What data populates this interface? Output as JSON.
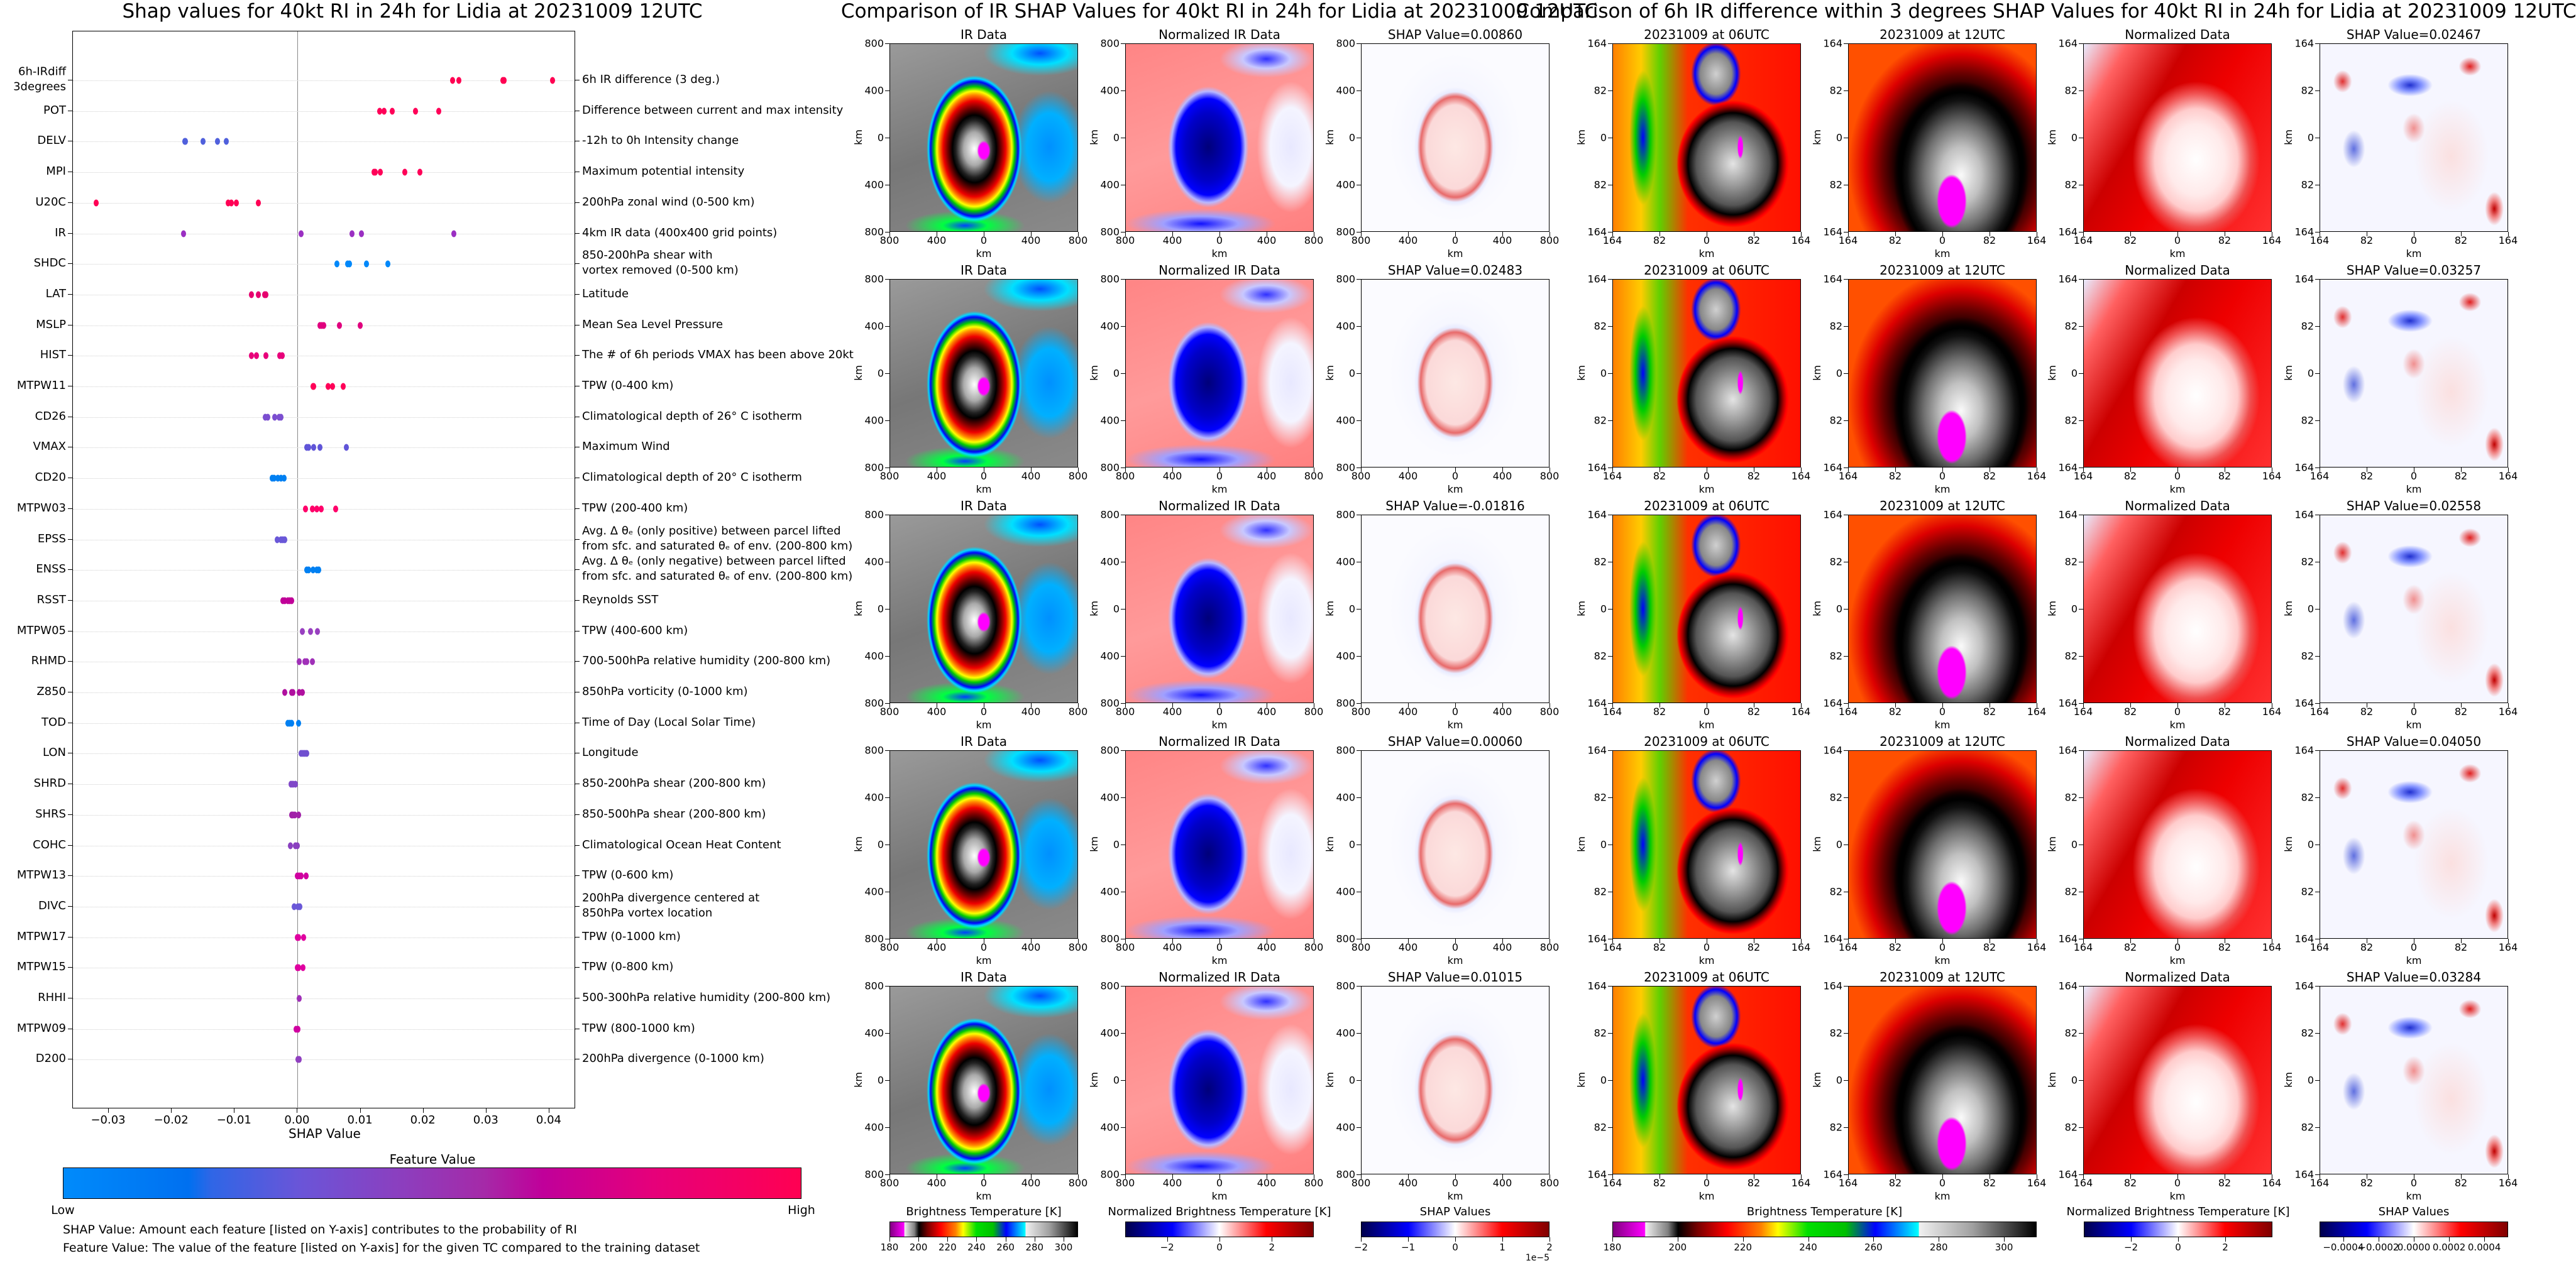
{
  "chart_data": {
    "type": "scatter",
    "title": "Shap values for 40kt RI in 24h for Lidia at 20231009 12UTC",
    "xlabel": "SHAP Value",
    "xlim": [
      -0.0357,
      0.0442
    ],
    "xticks": [
      {
        "v": -0.03,
        "label": "−0.03"
      },
      {
        "v": -0.02,
        "label": "−0.02"
      },
      {
        "v": -0.01,
        "label": "−0.01"
      },
      {
        "v": 0.0,
        "label": "0.00"
      },
      {
        "v": 0.01,
        "label": "0.01"
      },
      {
        "v": 0.02,
        "label": "0.02"
      },
      {
        "v": 0.03,
        "label": "0.03"
      },
      {
        "v": 0.04,
        "label": "0.04"
      }
    ],
    "features": [
      {
        "code": "6h-IRdiff\n3degrees",
        "desc": "6h IR difference (3 deg.)",
        "color": "#ff0052",
        "values": [
          0.02467,
          0.02558,
          0.03257,
          0.03284,
          0.0405
        ]
      },
      {
        "code": "POT",
        "desc": "Difference between current and max intensity",
        "color": "#ff0058",
        "values": [
          0.013,
          0.0137,
          0.015,
          0.0187,
          0.0224
        ]
      },
      {
        "code": "DELV",
        "desc": "-12h to 0h Intensity change",
        "color": "#5060dc",
        "values": [
          -0.0179,
          -0.0178,
          -0.015,
          -0.0127,
          -0.0113
        ]
      },
      {
        "code": "MPI",
        "desc": "Maximum potential intensity",
        "color": "#ff0058",
        "values": [
          0.0121,
          0.0123,
          0.0131,
          0.017,
          0.0194
        ]
      },
      {
        "code": "U20C",
        "desc": "200hPa zonal wind (0-500 km)",
        "color": "#ff0055",
        "values": [
          -0.032,
          -0.011,
          -0.0105,
          -0.0097,
          -0.0062
        ]
      },
      {
        "code": "IR",
        "desc": "4km IR data (400x400 grid points)",
        "color": "#9a2fc2",
        "values": [
          -0.01816,
          0.0006,
          0.0086,
          0.01015,
          0.02483
        ]
      },
      {
        "code": "SHDC",
        "desc": "850-200hPa shear with\nvortex removed (0-500 km)",
        "color": "#0088fa",
        "values": [
          0.0062,
          0.0079,
          0.0082,
          0.0109,
          0.0143
        ]
      },
      {
        "code": "LAT",
        "desc": "Latitude",
        "color": "#e6006e",
        "values": [
          -0.0073,
          -0.0062,
          -0.0052,
          -0.005
        ]
      },
      {
        "code": "MSLP",
        "desc": "Mean Sea Level Pressure",
        "color": "#e0007e",
        "values": [
          0.0036,
          0.0039,
          0.0042,
          0.0066,
          0.0099
        ]
      },
      {
        "code": "HIST",
        "desc": "The # of 6h periods VMAX has been above 20kt",
        "color": "#e8007a",
        "values": [
          -0.0073,
          -0.0065,
          -0.005,
          -0.0028,
          -0.0024
        ]
      },
      {
        "code": "MTPW11",
        "desc": "TPW (0-400 km)",
        "color": "#ff0058",
        "values": [
          0.0025,
          0.0026,
          0.0048,
          0.0055,
          0.0072
        ]
      },
      {
        "code": "CD26",
        "desc": "Climatological depth of 26° C isotherm",
        "color": "#7b4ed0",
        "values": [
          -0.0051,
          -0.0047,
          -0.0036,
          -0.0029,
          -0.0026
        ]
      },
      {
        "code": "VMAX",
        "desc": "Maximum Wind",
        "color": "#6055d8",
        "values": [
          0.0015,
          0.0018,
          0.0026,
          0.0036,
          0.0077
        ]
      },
      {
        "code": "CD20",
        "desc": "Climatological depth of 20° C isotherm",
        "color": "#0080f2",
        "values": [
          -0.004,
          -0.0037,
          -0.0031,
          -0.0026,
          -0.0021
        ]
      },
      {
        "code": "MTPW03",
        "desc": "TPW (200-400 km)",
        "color": "#ff006a",
        "values": [
          0.0013,
          0.0024,
          0.0031,
          0.0038,
          0.006
        ]
      },
      {
        "code": "EPSS",
        "desc": "Avg. Δ θₑ (only positive) between parcel lifted\nfrom sfc. and saturated θₑ of env. (200-800 km)",
        "color": "#6a58d8",
        "values": [
          -0.0032,
          -0.0026,
          -0.0023,
          -0.002
        ]
      },
      {
        "code": "ENSS",
        "desc": "Avg. Δ θₑ (only negative) between parcel lifted\nfrom sfc. and saturated θₑ of env. (200-800 km)",
        "color": "#0080f2",
        "values": [
          0.0015,
          0.0018,
          0.0025,
          0.0031,
          0.0034
        ]
      },
      {
        "code": "RSST",
        "desc": "Reynolds SST",
        "color": "#c00098",
        "values": [
          -0.0023,
          -0.002,
          -0.0015,
          -0.0012,
          -0.0009
        ]
      },
      {
        "code": "MTPW05",
        "desc": "TPW (400-600 km)",
        "color": "#9840c0",
        "values": [
          0.0008,
          0.0021,
          0.0032
        ]
      },
      {
        "code": "RHMD",
        "desc": "700-500hPa relative humidity (200-800 km)",
        "color": "#a030b8",
        "values": [
          0.0003,
          0.0012,
          0.0015,
          0.0024
        ]
      },
      {
        "code": "Z850",
        "desc": "850hPa vorticity (0-1000 km)",
        "color": "#b0109f",
        "values": [
          -0.002,
          -0.0009,
          -0.0007,
          0.0003,
          0.0008
        ]
      },
      {
        "code": "TOD",
        "desc": "Time of Day (Local Solar Time)",
        "color": "#0080f2",
        "values": [
          -0.0015,
          -0.0012,
          -0.0009,
          0.0002
        ]
      },
      {
        "code": "LON",
        "desc": "Longitude",
        "color": "#7050d0",
        "values": [
          0.0006,
          0.0009,
          0.0012,
          0.0015
        ]
      },
      {
        "code": "SHRD",
        "desc": "850-200hPa shear (200-800 km)",
        "color": "#8048c8",
        "values": [
          -0.001,
          -0.0007,
          -0.0003
        ]
      },
      {
        "code": "SHRS",
        "desc": "850-500hPa shear (200-800 km)",
        "color": "#a020a8",
        "values": [
          -0.0009,
          -0.0007,
          -0.0004,
          0.0002
        ]
      },
      {
        "code": "COHC",
        "desc": "Climatological Ocean Heat Content",
        "color": "#8a40c0",
        "values": [
          -0.0011,
          -0.0003,
          0.0
        ]
      },
      {
        "code": "MTPW13",
        "desc": "TPW (0-600 km)",
        "color": "#d000a0",
        "values": [
          0.0,
          0.0003,
          0.0006,
          0.0014
        ]
      },
      {
        "code": "DIVC",
        "desc": "200hPa divergence centered at\n850hPa vortex location",
        "color": "#6a58d8",
        "values": [
          -0.0005,
          0.0001,
          0.0004
        ]
      },
      {
        "code": "MTPW17",
        "desc": "TPW (0-1000 km)",
        "color": "#e000a0",
        "values": [
          0.0,
          0.0002,
          0.001
        ]
      },
      {
        "code": "MTPW15",
        "desc": "TPW (0-800 km)",
        "color": "#e000a0",
        "values": [
          0.0,
          0.0002,
          0.0009
        ]
      },
      {
        "code": "RHHI",
        "desc": "500-300hPa relative humidity (200-800 km)",
        "color": "#a030b8",
        "values": [
          0.0003
        ]
      },
      {
        "code": "MTPW09",
        "desc": "TPW (800-1000 km)",
        "color": "#d000a0",
        "values": [
          -0.0002,
          0.0001
        ]
      },
      {
        "code": "D200",
        "desc": "200hPa divergence (0-1000 km)",
        "color": "#9040c0",
        "values": [
          0.0001,
          0.0003
        ]
      }
    ],
    "colorbar": {
      "title": "Feature Value",
      "low": "Low",
      "high": "High"
    },
    "notes": [
      "SHAP Value: Amount each feature [listed on Y-axis] contributes to the probability of RI",
      "Feature Value: The value of the feature [listed on Y-axis] for the given TC compared to the training dataset"
    ]
  },
  "ir_comparison": {
    "title": "Comparison of IR SHAP Values for 40kt RI in 24h for Lidia at 20231009 12UTC",
    "axis_label": "km",
    "ticks": [
      "800",
      "400",
      "0",
      "400",
      "800"
    ],
    "rows": [
      {
        "ir": "IR Data",
        "norm": "Normalized IR Data",
        "shap": "SHAP Value=0.00860"
      },
      {
        "ir": "IR Data",
        "norm": "Normalized IR Data",
        "shap": "SHAP Value=0.02483"
      },
      {
        "ir": "IR Data",
        "norm": "Normalized IR Data",
        "shap": "SHAP Value=-0.01816"
      },
      {
        "ir": "IR Data",
        "norm": "Normalized IR Data",
        "shap": "SHAP Value=0.00060"
      },
      {
        "ir": "IR Data",
        "norm": "Normalized IR Data",
        "shap": "SHAP Value=0.01015"
      }
    ],
    "colorbars": [
      {
        "label": "Brightness Temperature [K]",
        "range": [
          180,
          310
        ],
        "ticks": [
          {
            "v": 180,
            "label": "180"
          },
          {
            "v": 200,
            "label": "200"
          },
          {
            "v": 220,
            "label": "220"
          },
          {
            "v": 240,
            "label": "240"
          },
          {
            "v": 260,
            "label": "260"
          },
          {
            "v": 280,
            "label": "280"
          },
          {
            "v": 300,
            "label": "300"
          }
        ]
      },
      {
        "label": "Normalized Brightness Temperature [K]",
        "range": [
          -3.6,
          3.6
        ],
        "ticks": [
          {
            "v": -2,
            "label": "−2"
          },
          {
            "v": 0,
            "label": "0"
          },
          {
            "v": 2,
            "label": "2"
          }
        ]
      },
      {
        "label": "SHAP Values",
        "range": [
          -2,
          2
        ],
        "offset": "1e−5",
        "ticks": [
          {
            "v": -2,
            "label": "−2"
          },
          {
            "v": -1,
            "label": "−1"
          },
          {
            "v": 0,
            "label": "0"
          },
          {
            "v": 1,
            "label": "1"
          },
          {
            "v": 2,
            "label": "2"
          }
        ]
      }
    ]
  },
  "irdiff_comparison": {
    "title": "Comparison of 6h IR difference within 3 degrees SHAP Values for 40kt RI in 24h for Lidia at 20231009 12UTC",
    "axis_label": "km",
    "ticks": [
      "164",
      "82",
      "0",
      "82",
      "164"
    ],
    "rows": [
      {
        "t06": "20231009 at 06UTC",
        "t12": "20231009 at 12UTC",
        "norm": "Normalized Data",
        "shap": "SHAP Value=0.02467"
      },
      {
        "t06": "20231009 at 06UTC",
        "t12": "20231009 at 12UTC",
        "norm": "Normalized Data",
        "shap": "SHAP Value=0.03257"
      },
      {
        "t06": "20231009 at 06UTC",
        "t12": "20231009 at 12UTC",
        "norm": "Normalized Data",
        "shap": "SHAP Value=0.02558"
      },
      {
        "t06": "20231009 at 06UTC",
        "t12": "20231009 at 12UTC",
        "norm": "Normalized Data",
        "shap": "SHAP Value=0.04050"
      },
      {
        "t06": "20231009 at 06UTC",
        "t12": "20231009 at 12UTC",
        "norm": "Normalized Data",
        "shap": "SHAP Value=0.03284"
      }
    ],
    "colorbars": [
      {
        "label": "Brightness Temperature [K]",
        "range": [
          180,
          310
        ],
        "ticks": [
          {
            "v": 180,
            "label": "180"
          },
          {
            "v": 200,
            "label": "200"
          },
          {
            "v": 220,
            "label": "220"
          },
          {
            "v": 240,
            "label": "240"
          },
          {
            "v": 260,
            "label": "260"
          },
          {
            "v": 280,
            "label": "280"
          },
          {
            "v": 300,
            "label": "300"
          }
        ]
      },
      {
        "label": "Normalized Brightness Temperature [K]",
        "range": [
          -4,
          4
        ],
        "ticks": [
          {
            "v": -2,
            "label": "−2"
          },
          {
            "v": 0,
            "label": "0"
          },
          {
            "v": 2,
            "label": "2"
          }
        ]
      },
      {
        "label": "SHAP Values",
        "range": [
          -0.000535,
          0.000535
        ],
        "ticks": [
          {
            "v": -0.0004,
            "label": "−0.0004"
          },
          {
            "v": -0.0002,
            "label": "−0.0002"
          },
          {
            "v": 0,
            "label": "0.0000"
          },
          {
            "v": 0.0002,
            "label": "0.0002"
          },
          {
            "v": 0.0004,
            "label": "0.0004"
          }
        ]
      }
    ]
  }
}
